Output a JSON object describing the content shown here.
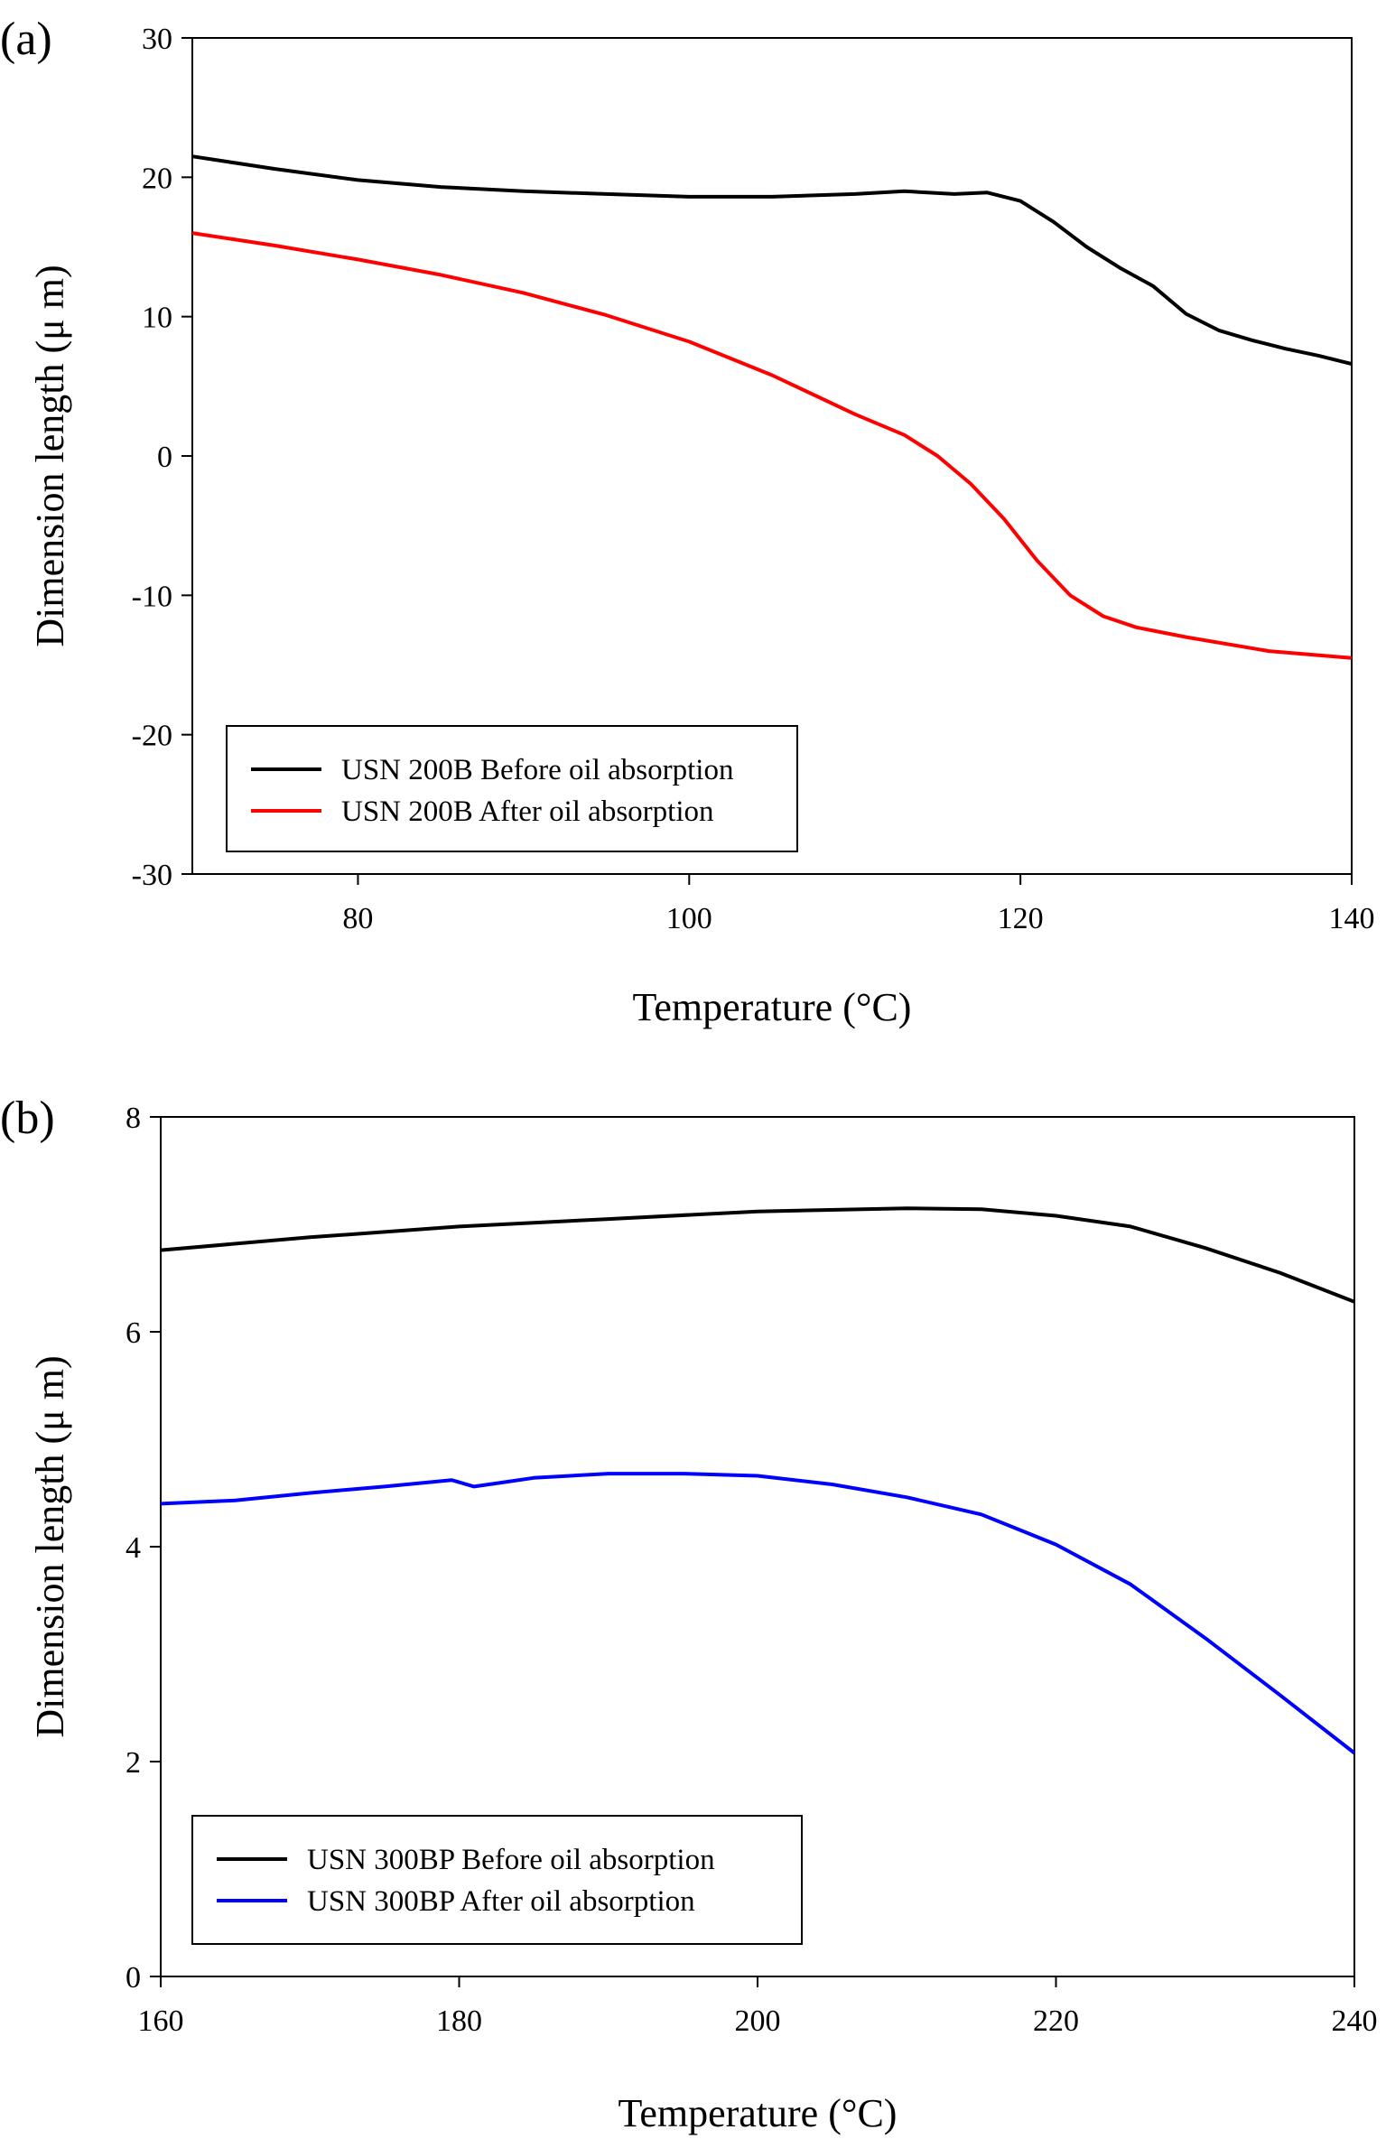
{
  "chart_data": [
    {
      "type": "line",
      "panel_label": "(a)",
      "xlabel": "Temperature (°C)",
      "ylabel": "Dimension length (μ m)",
      "xlim": [
        70,
        140
      ],
      "ylim": [
        -30,
        30
      ],
      "xticks": [
        80,
        100,
        120,
        140
      ],
      "yticks": [
        -30,
        -20,
        -10,
        0,
        10,
        20,
        30
      ],
      "grid": false,
      "legend_position": "bottom-left",
      "series": [
        {
          "name": "USN 200B Before oil absorption",
          "color": "#000000",
          "x": [
            70,
            75,
            80,
            85,
            90,
            95,
            100,
            105,
            110,
            113,
            116,
            118,
            120,
            122,
            124,
            126,
            128,
            130,
            132,
            134,
            136,
            138,
            140
          ],
          "y": [
            21.5,
            20.6,
            19.8,
            19.3,
            19.0,
            18.8,
            18.6,
            18.6,
            18.8,
            19.0,
            18.8,
            18.9,
            18.3,
            16.8,
            15.0,
            13.5,
            12.2,
            10.2,
            9.0,
            8.3,
            7.7,
            7.2,
            6.6
          ]
        },
        {
          "name": "USN 200B After oil absorption",
          "color": "#ff0000",
          "x": [
            70,
            75,
            80,
            85,
            90,
            95,
            100,
            105,
            110,
            113,
            115,
            117,
            119,
            121,
            123,
            125,
            127,
            130,
            135,
            140
          ],
          "y": [
            16.0,
            15.1,
            14.1,
            13.0,
            11.7,
            10.1,
            8.2,
            5.8,
            3.0,
            1.5,
            0.0,
            -2.0,
            -4.5,
            -7.5,
            -10.0,
            -11.5,
            -12.3,
            -13.0,
            -14.0,
            -14.5
          ]
        }
      ]
    },
    {
      "type": "line",
      "panel_label": "(b)",
      "xlabel": "Temperature (°C)",
      "ylabel": "Dimension length (μ m)",
      "xlim": [
        160,
        240
      ],
      "ylim": [
        0,
        8
      ],
      "xticks": [
        160,
        180,
        200,
        220,
        240
      ],
      "yticks": [
        0,
        2,
        4,
        6,
        8
      ],
      "grid": false,
      "legend_position": "bottom-left",
      "series": [
        {
          "name": "USN 300BP Before oil absorption",
          "color": "#000000",
          "x": [
            160,
            170,
            180,
            190,
            200,
            210,
            215,
            220,
            225,
            230,
            235,
            240
          ],
          "y": [
            6.76,
            6.88,
            6.98,
            7.05,
            7.12,
            7.15,
            7.14,
            7.08,
            6.98,
            6.78,
            6.55,
            6.28
          ]
        },
        {
          "name": "USN 300BP After oil absorption",
          "color": "#0000ff",
          "x": [
            160,
            165,
            170,
            175,
            179.5,
            181,
            183,
            185,
            190,
            195,
            200,
            205,
            210,
            215,
            220,
            225,
            230,
            235,
            240
          ],
          "y": [
            4.4,
            4.43,
            4.5,
            4.56,
            4.62,
            4.56,
            4.6,
            4.64,
            4.68,
            4.68,
            4.66,
            4.58,
            4.46,
            4.3,
            4.02,
            3.65,
            3.15,
            2.62,
            2.08
          ]
        }
      ]
    }
  ]
}
